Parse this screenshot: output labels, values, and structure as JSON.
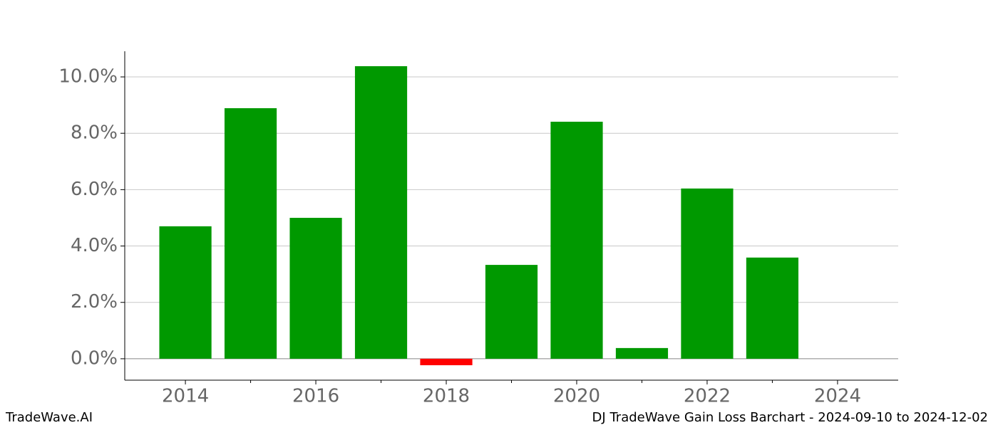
{
  "chart_data": {
    "type": "bar",
    "x": [
      2014,
      2015,
      2016,
      2017,
      2018,
      2019,
      2020,
      2021,
      2022,
      2023
    ],
    "values": [
      4.7,
      8.89,
      5.0,
      10.38,
      -0.23,
      3.33,
      8.41,
      0.38,
      6.04,
      3.59
    ],
    "color": "#009900",
    "negative_color": "#ff0000",
    "xlim": [
      2013.07,
      2024.93
    ],
    "xticks": [
      2014,
      2016,
      2018,
      2020,
      2022,
      2024
    ],
    "x_minor_ticks": [
      2015,
      2017,
      2019,
      2021,
      2023
    ],
    "ylim": [
      -0.76,
      10.91
    ],
    "yticks": [
      {
        "value": 0,
        "label": "0.0%"
      },
      {
        "value": 2,
        "label": "2.0%"
      },
      {
        "value": 4,
        "label": "4.0%"
      },
      {
        "value": 6,
        "label": "6.0%"
      },
      {
        "value": 8,
        "label": "8.0%"
      },
      {
        "value": 10,
        "label": "10.0%"
      }
    ],
    "grid": true,
    "footer_left": "TradeWave.AI",
    "footer_right": "DJ TradeWave Gain Loss Barchart - 2024-09-10 to 2024-12-02"
  }
}
